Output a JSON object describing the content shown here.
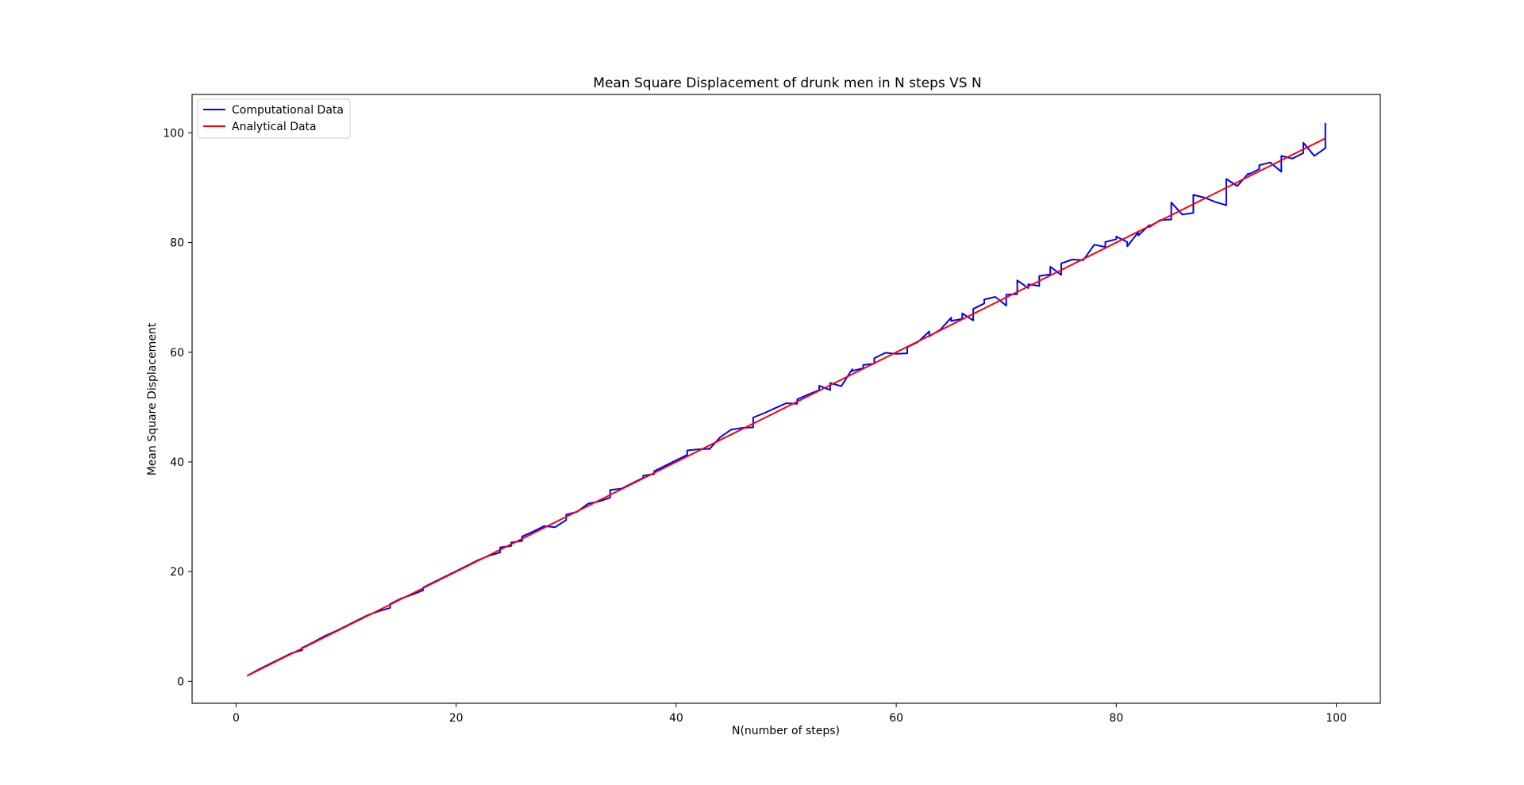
{
  "chart_data": {
    "type": "line",
    "title": "Mean Square Displacement of drunk men in N steps VS N",
    "xlabel": "N(number of steps)",
    "ylabel": "Mean Square Displacement",
    "xlim": [
      -4,
      104
    ],
    "ylim": [
      -4,
      107
    ],
    "xticks": [
      "0",
      "20",
      "40",
      "60",
      "80",
      "100"
    ],
    "yticks": [
      "0",
      "20",
      "40",
      "60",
      "80",
      "100"
    ],
    "grid": false,
    "legend_position": "upper-left",
    "colors": {
      "computational": "#0000ff",
      "analytical": "#ff0000"
    },
    "series": [
      {
        "name": "Computational Data",
        "color": "#0000ff",
        "x": [
          1,
          2,
          3,
          4,
          5,
          6,
          6,
          7,
          8,
          9,
          10,
          11,
          12,
          13,
          14,
          14,
          15,
          16,
          17,
          17,
          18,
          19,
          20,
          21,
          22,
          23,
          24,
          24,
          25,
          25,
          26,
          26,
          27,
          28,
          29,
          30,
          30,
          31,
          32,
          33,
          34,
          34,
          35,
          36,
          37,
          37,
          38,
          38,
          39,
          40,
          41,
          41,
          42,
          43,
          43,
          44,
          45,
          46,
          47,
          47,
          48,
          49,
          50,
          51,
          51,
          52,
          53,
          53,
          54,
          54,
          55,
          56,
          56,
          57,
          57,
          58,
          58,
          59,
          60,
          61,
          61,
          62,
          63,
          63,
          64,
          65,
          65,
          66,
          66,
          67,
          67,
          68,
          68,
          69,
          70,
          70,
          71,
          71,
          72,
          72,
          73,
          73,
          74,
          74,
          75,
          75,
          76,
          77,
          78,
          79,
          79,
          80,
          80,
          81,
          81,
          82,
          82,
          83,
          83,
          84,
          85,
          85,
          86,
          87,
          87,
          88,
          89,
          90,
          90,
          91,
          92,
          92,
          93,
          93,
          94,
          95,
          95,
          96,
          97,
          97,
          98,
          99,
          99
        ],
        "y": [
          1,
          2.1,
          3.1,
          4.1,
          5.1,
          5.7,
          6.1,
          7.1,
          8.2,
          9.1,
          10.1,
          11.1,
          12.1,
          12.8,
          13.4,
          14.1,
          15.1,
          15.8,
          16.6,
          17.1,
          18.1,
          19.1,
          20.1,
          21.1,
          22.1,
          22.9,
          23.5,
          24.4,
          24.7,
          25.3,
          25.6,
          26.4,
          27.3,
          28.3,
          28.1,
          29.4,
          30.4,
          30.9,
          32.4,
          32.8,
          33.5,
          34.9,
          35.1,
          36.1,
          37.1,
          37.5,
          37.8,
          38.3,
          39.3,
          40.3,
          41.3,
          42.1,
          42.3,
          42.4,
          42.3,
          44.5,
          45.9,
          46.2,
          46.3,
          48.1,
          48.9,
          49.8,
          50.7,
          50.6,
          51.4,
          52.3,
          53.1,
          53.9,
          53.1,
          54.4,
          53.8,
          56.9,
          56.6,
          57.1,
          57.7,
          57.9,
          58.9,
          59.9,
          59.7,
          59.8,
          60.9,
          61.9,
          63.8,
          62.9,
          64.1,
          66.3,
          65.7,
          66.1,
          67.1,
          65.8,
          67.9,
          68.9,
          69.6,
          70.1,
          68.5,
          70.5,
          70.6,
          73.1,
          71.7,
          72.4,
          72.1,
          73.9,
          74.2,
          75.6,
          74.1,
          76.2,
          76.9,
          76.8,
          79.6,
          79.2,
          80.1,
          80.6,
          81.1,
          80.1,
          79.3,
          81.9,
          81.3,
          83.2,
          82.8,
          84.1,
          84.2,
          87.3,
          85.1,
          85.4,
          88.7,
          88.2,
          87.4,
          86.8,
          91.6,
          90.3,
          92.6,
          92.4,
          93.4,
          94.1,
          94.6,
          92.9,
          95.8,
          95.3,
          96.3,
          98.2,
          95.8,
          97.2,
          101.8
        ]
      },
      {
        "name": "Analytical Data",
        "color": "#ff0000",
        "x": [
          1,
          99
        ],
        "y": [
          1,
          99
        ]
      }
    ]
  }
}
